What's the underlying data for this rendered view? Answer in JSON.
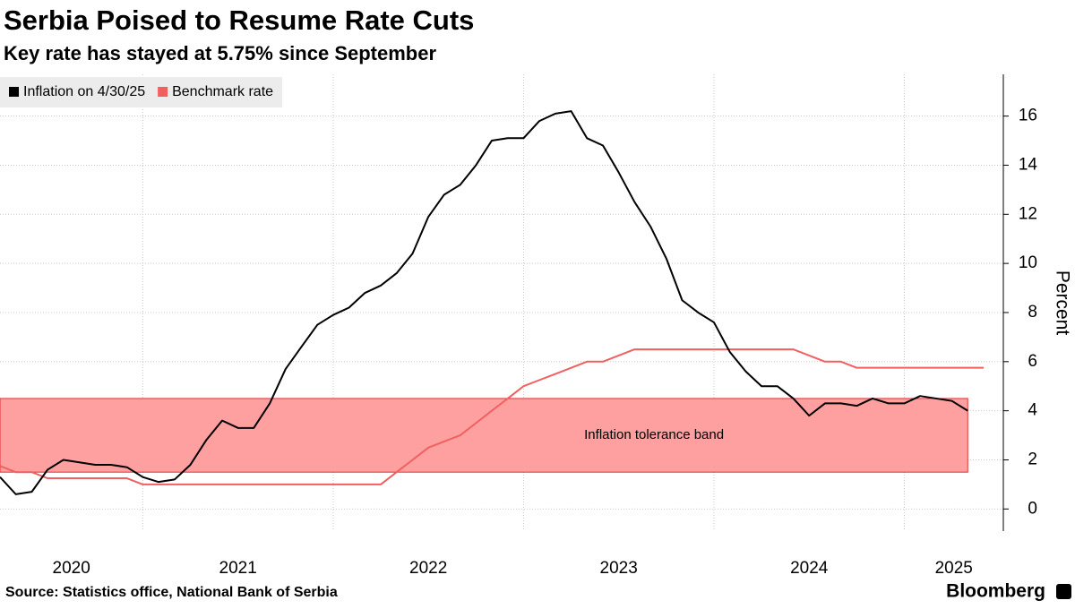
{
  "chart_data": {
    "type": "line",
    "title": "Serbia Poised to Resume Rate Cuts",
    "subtitle": "Key rate has stayed at 5.75% since September",
    "y_axis_label": "Percent",
    "source": "Source: Statistics office, National Bank of Serbia",
    "brand": "Bloomberg",
    "x": [
      2020.25,
      2020.333,
      2020.417,
      2020.5,
      2020.583,
      2020.667,
      2020.75,
      2020.833,
      2020.917,
      2021,
      2021.083,
      2021.167,
      2021.25,
      2021.333,
      2021.417,
      2021.5,
      2021.583,
      2021.667,
      2021.75,
      2021.833,
      2021.917,
      2022,
      2022.083,
      2022.167,
      2022.25,
      2022.333,
      2022.417,
      2022.5,
      2022.583,
      2022.667,
      2022.75,
      2022.833,
      2022.917,
      2023,
      2023.083,
      2023.167,
      2023.25,
      2023.333,
      2023.417,
      2023.5,
      2023.583,
      2023.667,
      2023.75,
      2023.833,
      2023.917,
      2024,
      2024.083,
      2024.167,
      2024.25,
      2024.333,
      2024.417,
      2024.5,
      2024.583,
      2024.667,
      2024.75,
      2024.833,
      2024.917,
      2025,
      2025.083,
      2025.167,
      2025.25,
      2025.333,
      2025.417
    ],
    "series": [
      {
        "name": "Inflation on 4/30/25",
        "color": "#000000",
        "values": [
          1.3,
          0.6,
          0.7,
          1.6,
          2.0,
          1.9,
          1.8,
          1.8,
          1.7,
          1.3,
          1.1,
          1.2,
          1.8,
          2.8,
          3.6,
          3.3,
          3.3,
          4.3,
          5.7,
          6.6,
          7.5,
          7.9,
          8.2,
          8.8,
          9.1,
          9.6,
          10.4,
          11.9,
          12.8,
          13.2,
          14.0,
          15.0,
          15.1,
          15.1,
          15.8,
          16.1,
          16.2,
          15.1,
          14.8,
          13.7,
          12.5,
          11.5,
          10.2,
          8.5,
          8.0,
          7.6,
          6.4,
          5.6,
          5.0,
          5.0,
          4.5,
          3.8,
          4.3,
          4.3,
          4.2,
          4.5,
          4.3,
          4.3,
          4.6,
          4.5,
          4.4,
          4.0,
          null
        ]
      },
      {
        "name": "Benchmark rate",
        "color": "#f06060",
        "values": [
          1.75,
          1.5,
          1.5,
          1.25,
          1.25,
          1.25,
          1.25,
          1.25,
          1.25,
          1.0,
          1.0,
          1.0,
          1.0,
          1.0,
          1.0,
          1.0,
          1.0,
          1.0,
          1.0,
          1.0,
          1.0,
          1.0,
          1.0,
          1.0,
          1.0,
          1.5,
          2.0,
          2.5,
          2.75,
          3.0,
          3.5,
          4.0,
          4.5,
          5.0,
          5.25,
          5.5,
          5.75,
          6.0,
          6.0,
          6.25,
          6.5,
          6.5,
          6.5,
          6.5,
          6.5,
          6.5,
          6.5,
          6.5,
          6.5,
          6.5,
          6.5,
          6.25,
          6.0,
          6.0,
          5.75,
          5.75,
          5.75,
          5.75,
          5.75,
          5.75,
          5.75,
          5.75,
          5.75
        ]
      }
    ],
    "band": {
      "label": "Inflation tolerance band",
      "from": 1.5,
      "to": 4.5,
      "x_range": [
        2020.25,
        2025.333
      ],
      "color": "#ffa0a0",
      "edge_color": "#e03030"
    },
    "xlim": [
      2020.25,
      2025.52
    ],
    "xticks": [
      {
        "value": 2020,
        "label": "2020"
      },
      {
        "value": 2021,
        "label": "2021"
      },
      {
        "value": 2022,
        "label": "2022"
      },
      {
        "value": 2023,
        "label": "2023"
      },
      {
        "value": 2024,
        "label": "2024"
      },
      {
        "value": 2025,
        "label": "2025"
      }
    ],
    "ylim": [
      -0.9,
      17.7
    ],
    "yticks": [
      0,
      2,
      4,
      6,
      8,
      10,
      12,
      14,
      16
    ],
    "grid": true,
    "legend": "top-left"
  }
}
